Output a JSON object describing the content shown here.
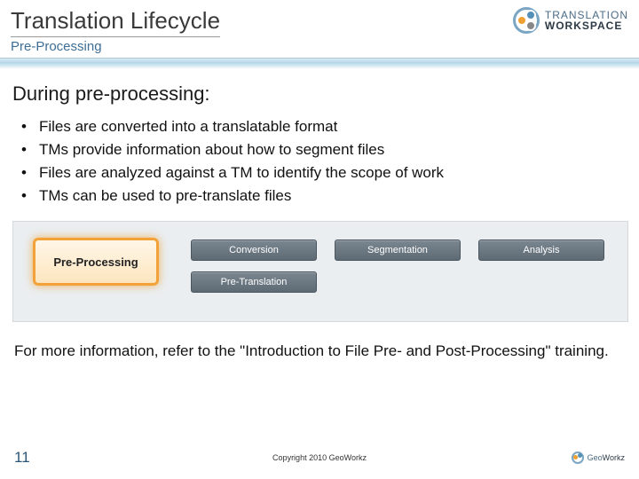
{
  "header": {
    "title": "Translation Lifecycle",
    "subtitle": "Pre-Processing",
    "brand_top": "TRANSLATION",
    "brand_bottom": "WORKSPACE"
  },
  "body": {
    "heading": "During pre-processing:",
    "bullets": [
      "Files are converted into a translatable format",
      "TMs provide information about how to segment files",
      "Files are analyzed against a TM to identify the scope of work",
      "TMs can be used to pre-translate files"
    ],
    "more_info": "For more information, refer to the \"Introduction to File Pre- and Post-Processing\" training."
  },
  "diagram": {
    "type": "flowchart",
    "background_color": "#eaeef1",
    "border_color": "#d5d9dc",
    "highlight": {
      "label": "Pre-Processing",
      "border_color": "#f2a238",
      "fill_top": "#fff6e8",
      "fill_bottom": "#fde6bf",
      "text_color": "#222222",
      "fontsize": 13,
      "fontweight": "bold"
    },
    "step_style": {
      "fill_top": "#7a8690",
      "fill_bottom": "#5e6a74",
      "border_color": "#4b555e",
      "text_color": "#ffffff",
      "fontsize": 11
    },
    "steps": {
      "conversion": "Conversion",
      "segmentation": "Segmentation",
      "analysis": "Analysis",
      "pretranslation": "Pre-Translation"
    }
  },
  "footer": {
    "page_number": "11",
    "copyright": "Copyright 2010 GeoWorkz",
    "brand_prefix": "Geo",
    "brand_suffix": "Workz"
  },
  "colors": {
    "title_text": "#3a3a3a",
    "subtitle_text": "#3e6e96",
    "divider_top": "#d9ecf5",
    "divider_mid": "#b5d7e8",
    "page_num": "#2b5576",
    "body_text": "#111111"
  }
}
